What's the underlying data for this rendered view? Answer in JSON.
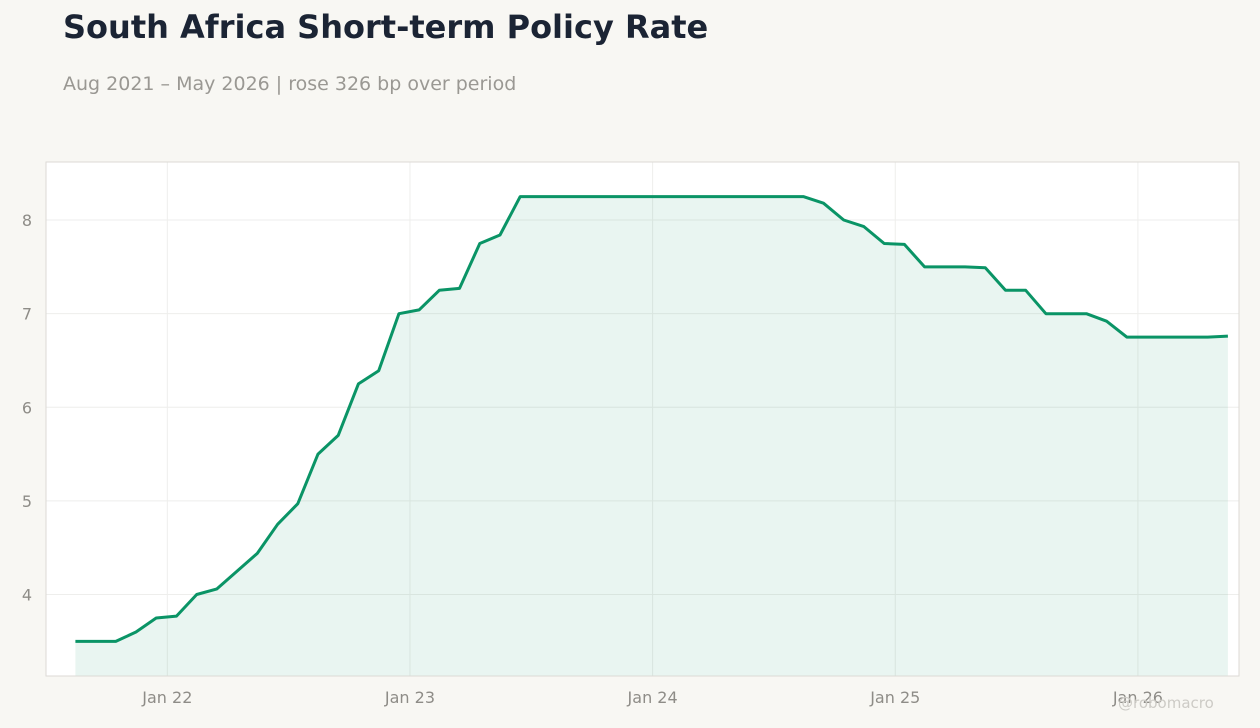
{
  "title": "South Africa Short-term Policy Rate",
  "subtitle": "Aug 2021 – May 2026 | rose 326 bp over period",
  "watermark": "@robomacro",
  "colors": {
    "line": "#0a9466",
    "fill": "#0a9466",
    "background": "#f8f7f3",
    "plot_background": "#ffffff",
    "grid": "#eeeeec",
    "tick_text": "#8e8c87",
    "title_text": "#1b2434"
  },
  "chart_data": {
    "type": "area",
    "title": "South Africa Short-term Policy Rate",
    "subtitle": "Aug 2021 – May 2026 | rose 326 bp over period",
    "xlabel": "",
    "ylabel": "",
    "grid": true,
    "legend": "none",
    "xlim": [
      "2021-07-01",
      "2026-06-01"
    ],
    "ylim": [
      3.13,
      8.62
    ],
    "xticks": [
      {
        "label": "Jan 22",
        "date": "2022-01-01"
      },
      {
        "label": "Jan 23",
        "date": "2023-01-01"
      },
      {
        "label": "Jan 24",
        "date": "2024-01-01"
      },
      {
        "label": "Jan 25",
        "date": "2025-01-01"
      },
      {
        "label": "Jan 26",
        "date": "2026-01-01"
      }
    ],
    "yticks": [
      4,
      5,
      6,
      7,
      8
    ],
    "series": [
      {
        "x": [
          "2021-08",
          "2021-09",
          "2021-10",
          "2021-11",
          "2021-12",
          "2022-01",
          "2022-02",
          "2022-03",
          "2022-04",
          "2022-05",
          "2022-06",
          "2022-07",
          "2022-08",
          "2022-09",
          "2022-10",
          "2022-11",
          "2022-12",
          "2023-01",
          "2023-02",
          "2023-03",
          "2023-04",
          "2023-05",
          "2023-06",
          "2023-07",
          "2023-08",
          "2023-09",
          "2023-10",
          "2023-11",
          "2023-12",
          "2024-01",
          "2024-02",
          "2024-03",
          "2024-04",
          "2024-05",
          "2024-06",
          "2024-07",
          "2024-08",
          "2024-09",
          "2024-10",
          "2024-11",
          "2024-12",
          "2025-01",
          "2025-02",
          "2025-03",
          "2025-04",
          "2025-05",
          "2025-06",
          "2025-07",
          "2025-08",
          "2025-09",
          "2025-10",
          "2025-11",
          "2025-12",
          "2026-01",
          "2026-02",
          "2026-03",
          "2026-04",
          "2026-05"
        ],
        "values": [
          3.5,
          3.5,
          3.5,
          3.6,
          3.75,
          3.77,
          4.0,
          4.06,
          4.25,
          4.44,
          4.75,
          4.97,
          5.5,
          5.7,
          6.25,
          6.39,
          7.0,
          7.04,
          7.25,
          7.27,
          7.75,
          7.84,
          8.25,
          8.25,
          8.25,
          8.25,
          8.25,
          8.25,
          8.25,
          8.25,
          8.25,
          8.25,
          8.25,
          8.25,
          8.25,
          8.25,
          8.25,
          8.18,
          8.0,
          7.93,
          7.75,
          7.74,
          7.5,
          7.5,
          7.5,
          7.49,
          7.25,
          7.25,
          7.0,
          7.0,
          7.0,
          6.92,
          6.75,
          6.75,
          6.75,
          6.75,
          6.75,
          6.76
        ]
      }
    ]
  }
}
